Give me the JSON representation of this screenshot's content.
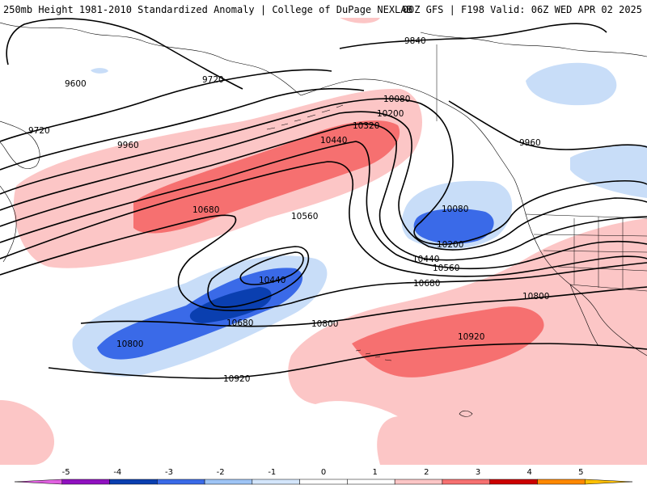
{
  "header": {
    "title_left": "250mb Height 1981-2010 Standardized Anomaly | College of DuPage NEXLAB",
    "title_right": "00Z GFS | F198 Valid: 06Z WED APR 02 2025"
  },
  "contour_labels": {
    "c9600": "9600",
    "c9720a": "9720",
    "c9720b": "9720",
    "c9840": "9840",
    "c9960a": "9960",
    "c9960b": "9960",
    "c10080a": "10080",
    "c10080b": "10080",
    "c10200a": "10200",
    "c10200b": "10200",
    "c10320": "10320",
    "c10440a": "10440",
    "c10440b": "10440",
    "c10440c": "10440",
    "c10560a": "10560",
    "c10560b": "10560",
    "c10680a": "10680",
    "c10680b": "10680",
    "c10680c": "10680",
    "c10800a": "10800",
    "c10800b": "10800",
    "c10800c": "10800",
    "c10920a": "10920",
    "c10920b": "10920"
  },
  "colorbar": {
    "ticks": [
      "-5",
      "-4",
      "-3",
      "-2",
      "-1",
      "0",
      "1",
      "2",
      "3",
      "4",
      "5"
    ],
    "colors": [
      "#e060e0",
      "#9010c0",
      "#0a3fb0",
      "#3a6ae8",
      "#9ec4f5",
      "#d4e6fb",
      "#ffffff",
      "#ffffff",
      "#fcc6c6",
      "#f67070",
      "#cc0000",
      "#ff8800",
      "#ffc000"
    ]
  }
}
